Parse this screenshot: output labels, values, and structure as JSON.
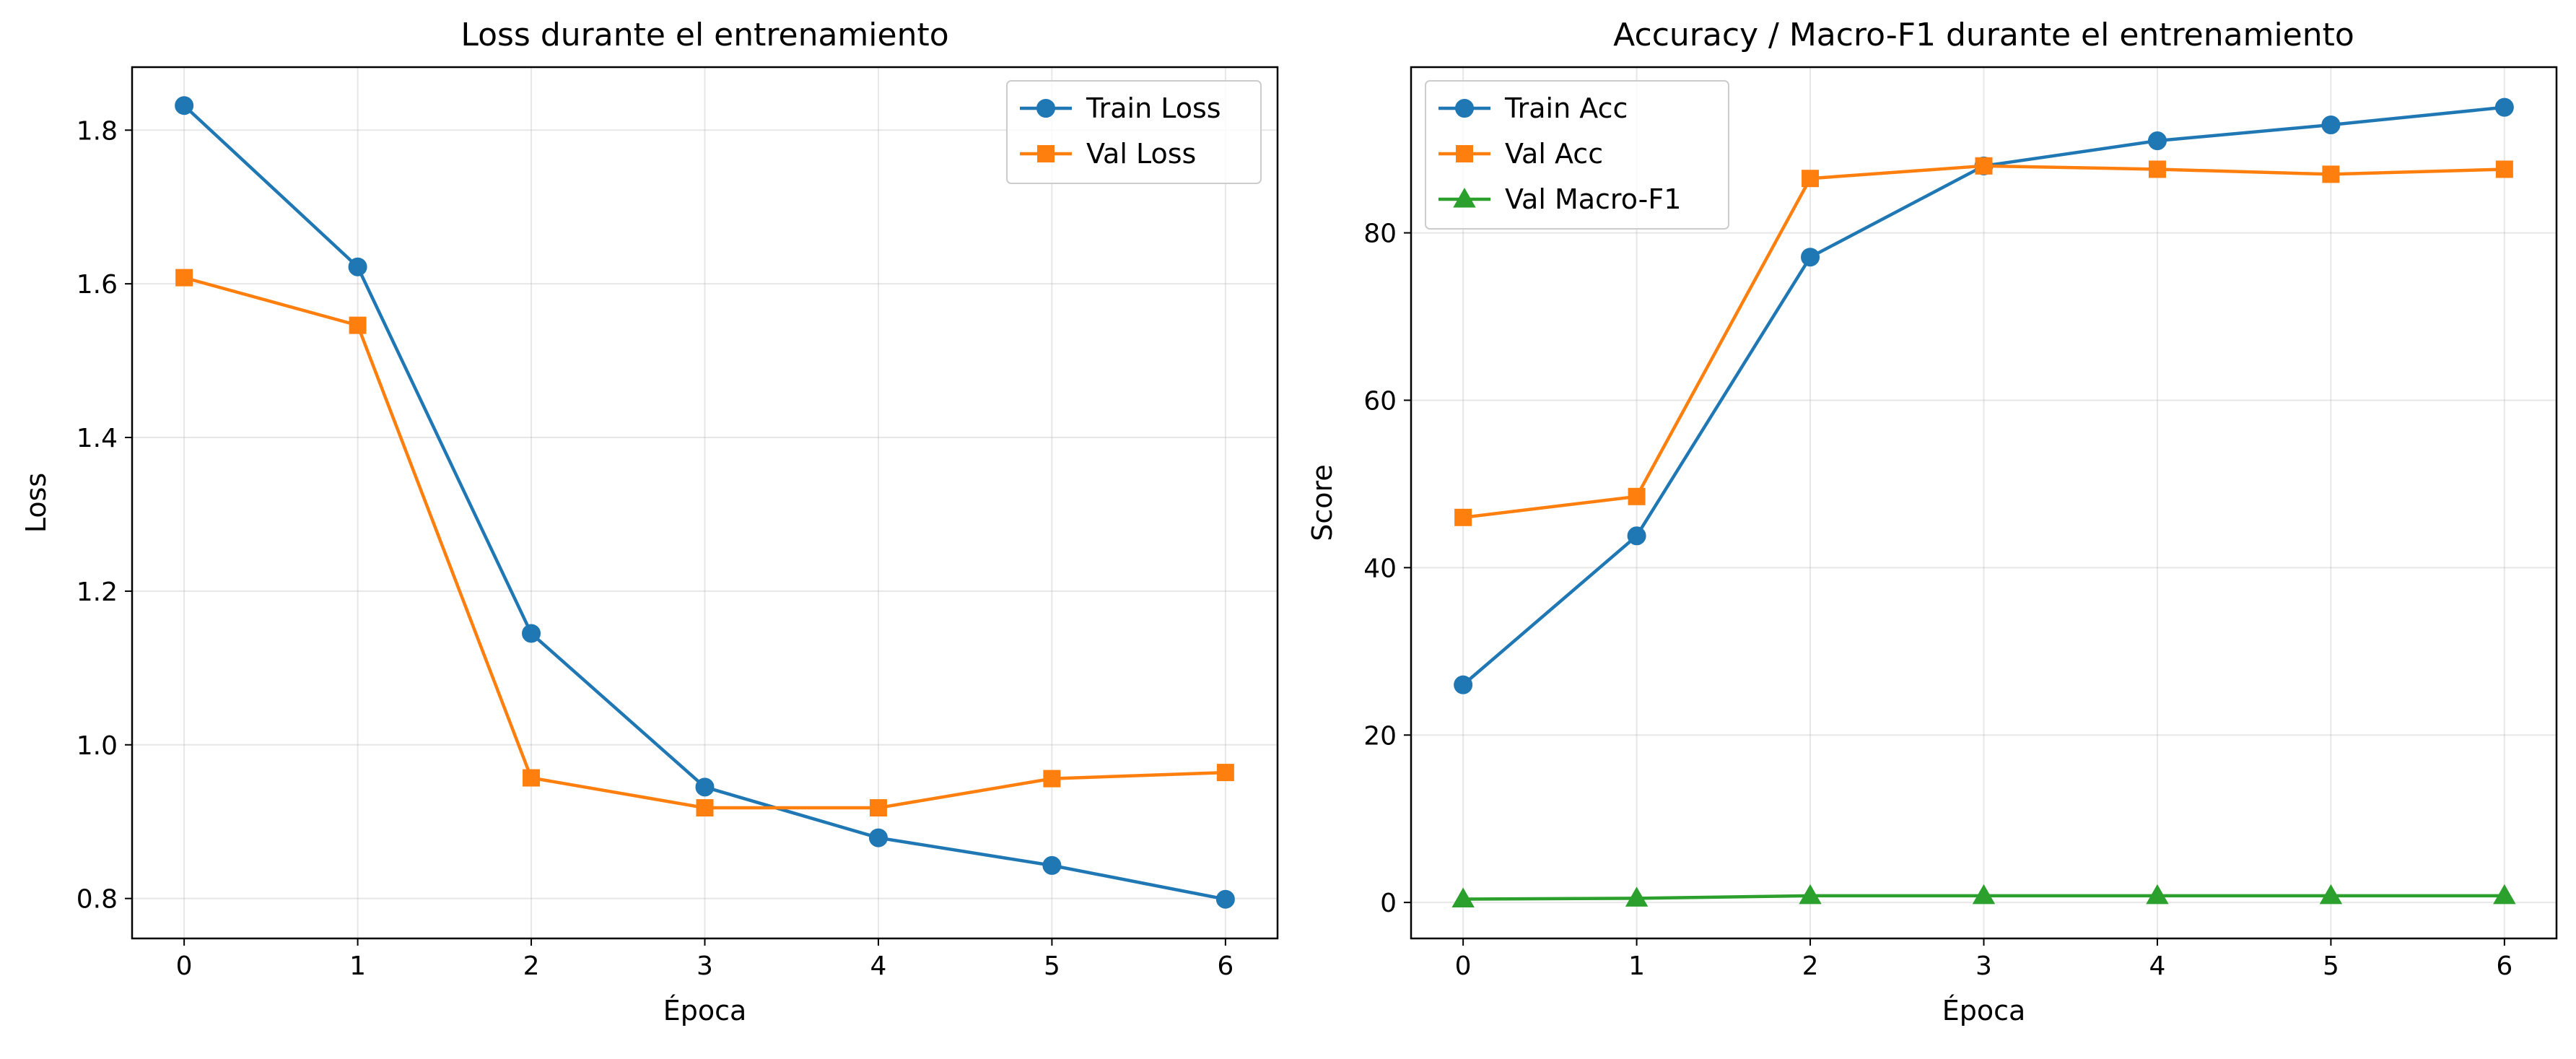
{
  "chart_data": [
    {
      "type": "line",
      "title": "Loss durante el entrenamiento",
      "xlabel": "Época",
      "ylabel": "Loss",
      "x": [
        0,
        1,
        2,
        3,
        4,
        5,
        6
      ],
      "xticks": [
        "0",
        "1",
        "2",
        "3",
        "4",
        "5",
        "6"
      ],
      "xlim": [
        -0.3,
        6.3
      ],
      "ylim": [
        0.748,
        1.882
      ],
      "yticks": [
        0.8,
        1.0,
        1.2,
        1.4,
        1.6,
        1.8
      ],
      "ytick_labels": [
        "0.8",
        "1.0",
        "1.2",
        "1.4",
        "1.6",
        "1.8"
      ],
      "grid": true,
      "legend": "top-right",
      "series": [
        {
          "name": "Train Loss",
          "color": "#1f77b4",
          "marker": "circle",
          "values": [
            1.832,
            1.622,
            1.145,
            0.945,
            0.879,
            0.843,
            0.799
          ]
        },
        {
          "name": "Val Loss",
          "color": "#ff7f0e",
          "marker": "square",
          "values": [
            1.608,
            1.546,
            0.957,
            0.918,
            0.918,
            0.956,
            0.964
          ]
        }
      ]
    },
    {
      "type": "line",
      "title": "Accuracy / Macro-F1 durante el entrenamiento",
      "xlabel": "Época",
      "ylabel": "Score",
      "x": [
        0,
        1,
        2,
        3,
        4,
        5,
        6
      ],
      "xticks": [
        "0",
        "1",
        "2",
        "3",
        "4",
        "5",
        "6"
      ],
      "xlim": [
        -0.3,
        6.3
      ],
      "ylim": [
        -4.3,
        99.8
      ],
      "yticks": [
        0,
        20,
        40,
        60,
        80
      ],
      "ytick_labels": [
        "0",
        "20",
        "40",
        "60",
        "80"
      ],
      "grid": true,
      "legend": "top-left",
      "series": [
        {
          "name": "Train Acc",
          "color": "#1f77b4",
          "marker": "circle",
          "values": [
            26.0,
            43.8,
            77.1,
            88.0,
            91.0,
            92.9,
            95.0
          ]
        },
        {
          "name": "Val Acc",
          "color": "#ff7f0e",
          "marker": "square",
          "values": [
            46.0,
            48.5,
            86.5,
            88.0,
            87.6,
            87.0,
            87.6
          ]
        },
        {
          "name": "Val Macro-F1",
          "color": "#2ca02c",
          "marker": "triangle",
          "values": [
            0.4,
            0.5,
            0.8,
            0.8,
            0.8,
            0.8,
            0.8
          ]
        }
      ]
    }
  ]
}
